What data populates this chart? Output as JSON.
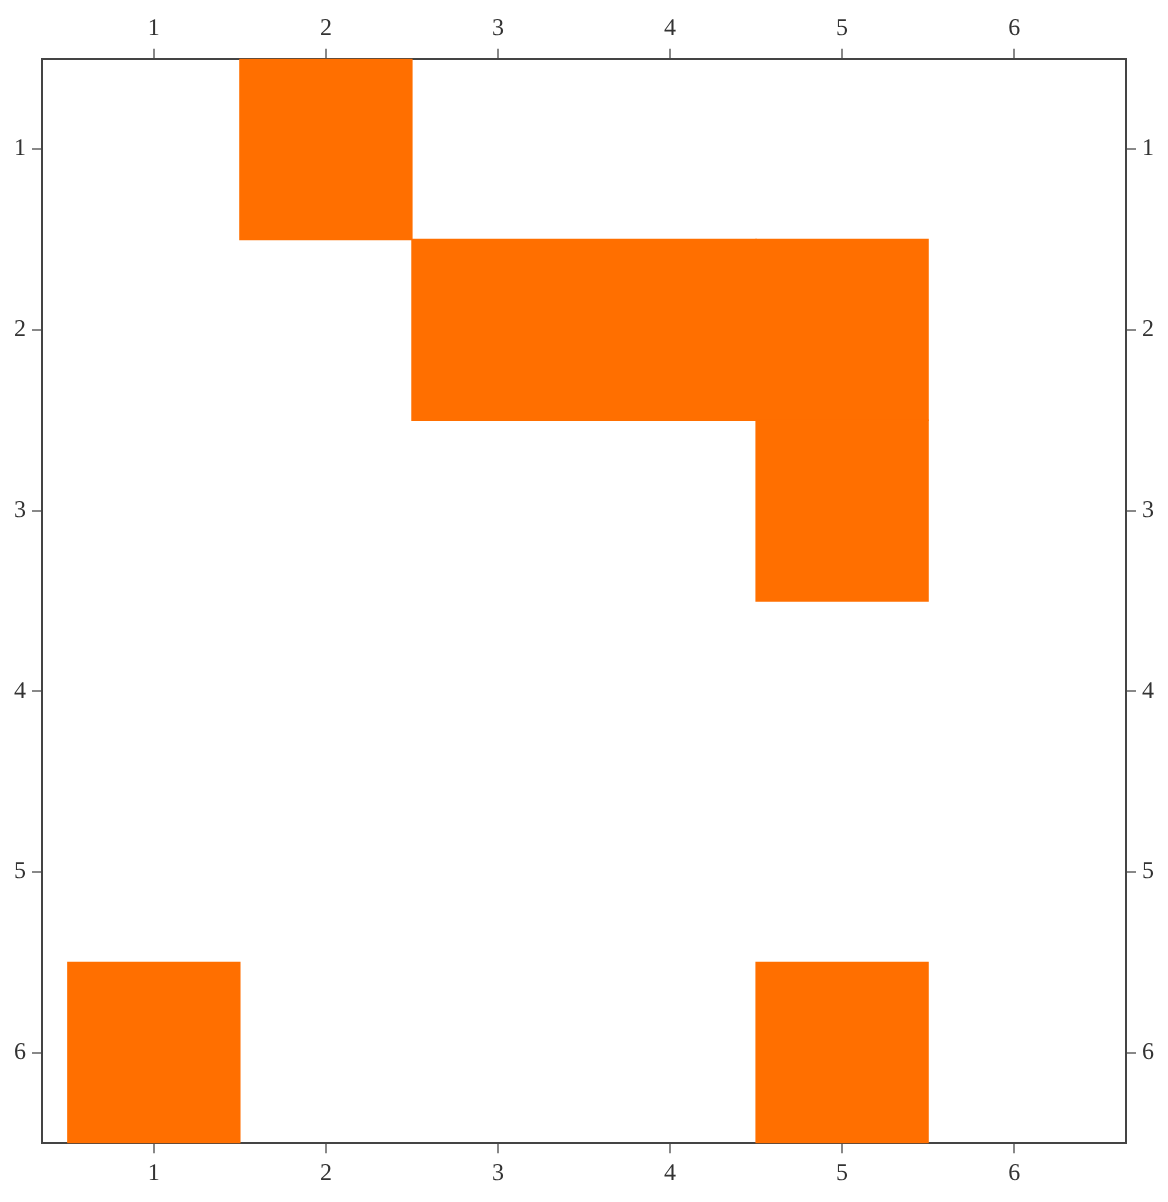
{
  "chart_data": {
    "type": "bar",
    "orientation": "horizontal",
    "grid": false,
    "legend": false,
    "categories": [
      "1",
      "2",
      "3",
      "4",
      "5",
      "6"
    ],
    "series": [
      {
        "color": "#ff6f00",
        "values": [
          1,
          2,
          1,
          null,
          null,
          1
        ],
        "base": [
          1.5,
          2.5,
          4.5,
          null,
          null,
          0.5
        ]
      },
      {
        "color": "#ff6f00",
        "values": [
          null,
          1,
          null,
          null,
          null,
          1
        ],
        "base": [
          null,
          4.5,
          null,
          null,
          null,
          4.5
        ]
      }
    ],
    "xlim": [
      0.35,
      6.65
    ],
    "xticks": [
      1,
      2,
      3,
      4,
      5,
      6
    ],
    "x2lim": [
      0.35,
      6.65
    ],
    "x2ticks": [
      1,
      2,
      3,
      4,
      5,
      6
    ]
  }
}
